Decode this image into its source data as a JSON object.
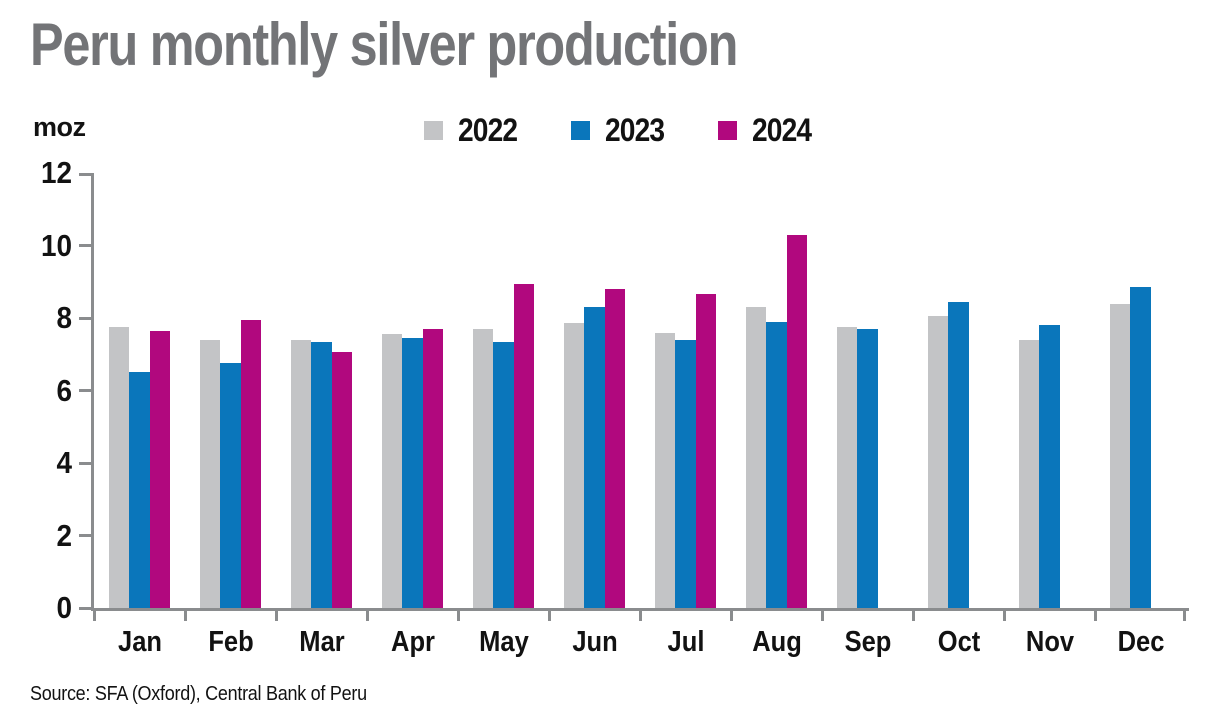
{
  "title": "Peru monthly silver production",
  "y_axis_unit": "moz",
  "source": "Source: SFA (Oxford), Central Bank of Peru",
  "colors": {
    "series_2022": "#c3c4c6",
    "series_2023": "#0a76bb",
    "series_2024": "#b1087e",
    "axis": "#8a8c8e",
    "title_text": "#737477",
    "label_text": "#121212",
    "background": "#ffffff"
  },
  "chart_data": {
    "type": "bar",
    "title": "Peru monthly silver production",
    "ylabel": "moz",
    "xlabel": "",
    "ylim": [
      0,
      12
    ],
    "yticks": [
      0,
      2,
      4,
      6,
      8,
      10,
      12
    ],
    "grid": false,
    "legend_position": "top",
    "categories": [
      "Jan",
      "Feb",
      "Mar",
      "Apr",
      "May",
      "Jun",
      "Jul",
      "Aug",
      "Sep",
      "Oct",
      "Nov",
      "Dec"
    ],
    "series": [
      {
        "name": "2022",
        "color": "#c3c4c6",
        "values": [
          7.75,
          7.4,
          7.4,
          7.55,
          7.7,
          7.85,
          7.6,
          8.3,
          7.75,
          8.05,
          7.4,
          8.4
        ]
      },
      {
        "name": "2023",
        "color": "#0a76bb",
        "values": [
          6.5,
          6.75,
          7.35,
          7.45,
          7.35,
          8.3,
          7.4,
          7.9,
          7.7,
          8.45,
          7.8,
          8.85
        ]
      },
      {
        "name": "2024",
        "color": "#b1087e",
        "values": [
          7.65,
          7.95,
          7.05,
          7.7,
          8.95,
          8.8,
          8.65,
          10.3,
          null,
          null,
          null,
          null
        ]
      }
    ]
  }
}
